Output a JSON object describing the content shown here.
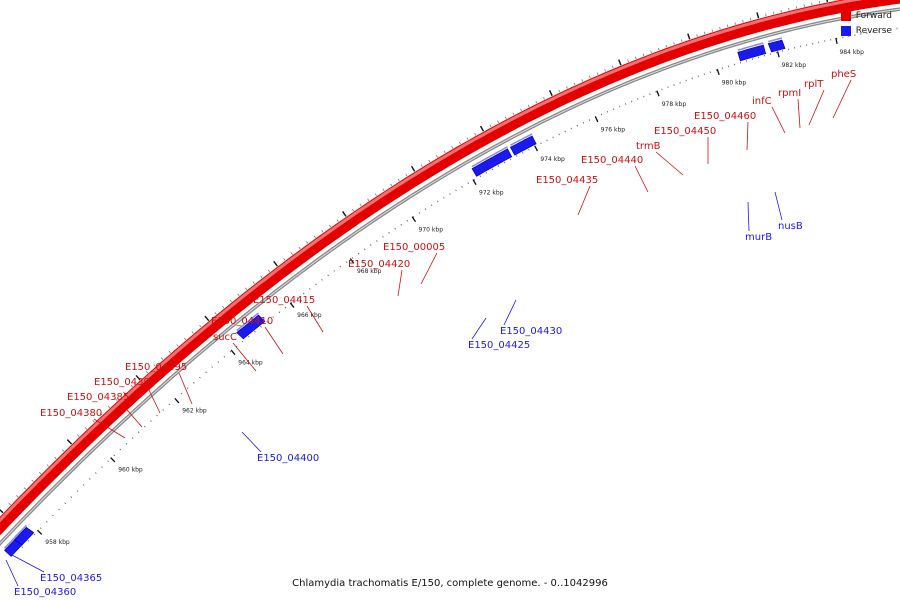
{
  "caption": "Chlamydia trachomatis E/150, complete genome. - 0..1042996",
  "colors": {
    "forward": "#e50000",
    "reverse": "#1a1aee"
  },
  "legend": [
    {
      "label": "Forward",
      "strand": "forward"
    },
    {
      "label": "Reverse",
      "strand": "reverse"
    }
  ],
  "ruler": [
    {
      "kbp": 958,
      "label": "958 kbp"
    },
    {
      "kbp": 960,
      "label": "960 kbp"
    },
    {
      "kbp": 962,
      "label": "962 kbp"
    },
    {
      "kbp": 964,
      "label": "964 kbp"
    },
    {
      "kbp": 966,
      "label": "966 kbp"
    },
    {
      "kbp": 968,
      "label": "968 kbp"
    },
    {
      "kbp": 970,
      "label": "970 kbp"
    },
    {
      "kbp": 972,
      "label": "972 kbp"
    },
    {
      "kbp": 974,
      "label": "974 kbp"
    },
    {
      "kbp": 976,
      "label": "976 kbp"
    },
    {
      "kbp": 978,
      "label": "978 kbp"
    },
    {
      "kbp": 980,
      "label": "980 kbp"
    },
    {
      "kbp": 982,
      "label": "982 kbp"
    },
    {
      "kbp": 984,
      "label": "984 kbp"
    }
  ],
  "forward_genes": [
    "E150_04380",
    "E150_04385",
    "E150_04390",
    "E150_04395",
    "sucC",
    "E150_04410",
    "E150_04415",
    "E150_04420",
    "E150_00005",
    "E150_04435",
    "E150_04440",
    "trmB",
    "E150_04450",
    "E150_04460",
    "infC",
    "rpmI",
    "rplT",
    "pheS"
  ],
  "reverse_genes": [
    "E150_04360",
    "E150_04365",
    "E150_04400",
    "E150_04425",
    "E150_04430",
    "murB",
    "nusB"
  ]
}
